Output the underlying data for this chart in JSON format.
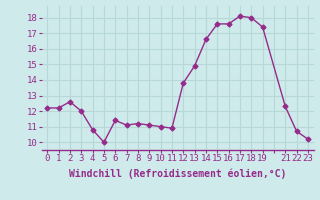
{
  "x": [
    0,
    1,
    2,
    3,
    4,
    5,
    6,
    7,
    8,
    9,
    10,
    11,
    12,
    13,
    14,
    15,
    16,
    17,
    18,
    19,
    21,
    22,
    23
  ],
  "y": [
    12.2,
    12.2,
    12.6,
    12.0,
    10.8,
    10.0,
    11.4,
    11.1,
    11.2,
    11.1,
    11.0,
    10.9,
    13.8,
    14.9,
    16.6,
    17.6,
    17.6,
    18.1,
    18.0,
    17.4,
    12.3,
    10.7,
    10.2
  ],
  "line_color": "#952b8a",
  "marker": "D",
  "marker_size": 2.5,
  "bg_color": "#ceeaea",
  "grid_color": "#b8d8d8",
  "xlabel": "Windchill (Refroidissement éolien,°C)",
  "xtick_labels": [
    "0",
    "1",
    "2",
    "3",
    "4",
    "5",
    "6",
    "7",
    "8",
    "9",
    "10",
    "11",
    "12",
    "13",
    "14",
    "15",
    "16",
    "17",
    "18",
    "19",
    "",
    "21",
    "22",
    "23"
  ],
  "xtick_positions": [
    0,
    1,
    2,
    3,
    4,
    5,
    6,
    7,
    8,
    9,
    10,
    11,
    12,
    13,
    14,
    15,
    16,
    17,
    18,
    19,
    20,
    21,
    22,
    23
  ],
  "yticks": [
    10,
    11,
    12,
    13,
    14,
    15,
    16,
    17,
    18
  ],
  "ylim": [
    9.5,
    18.75
  ],
  "xlim": [
    -0.5,
    23.5
  ],
  "xlabel_fontsize": 7,
  "tick_fontsize": 6.5,
  "linewidth": 1.0
}
